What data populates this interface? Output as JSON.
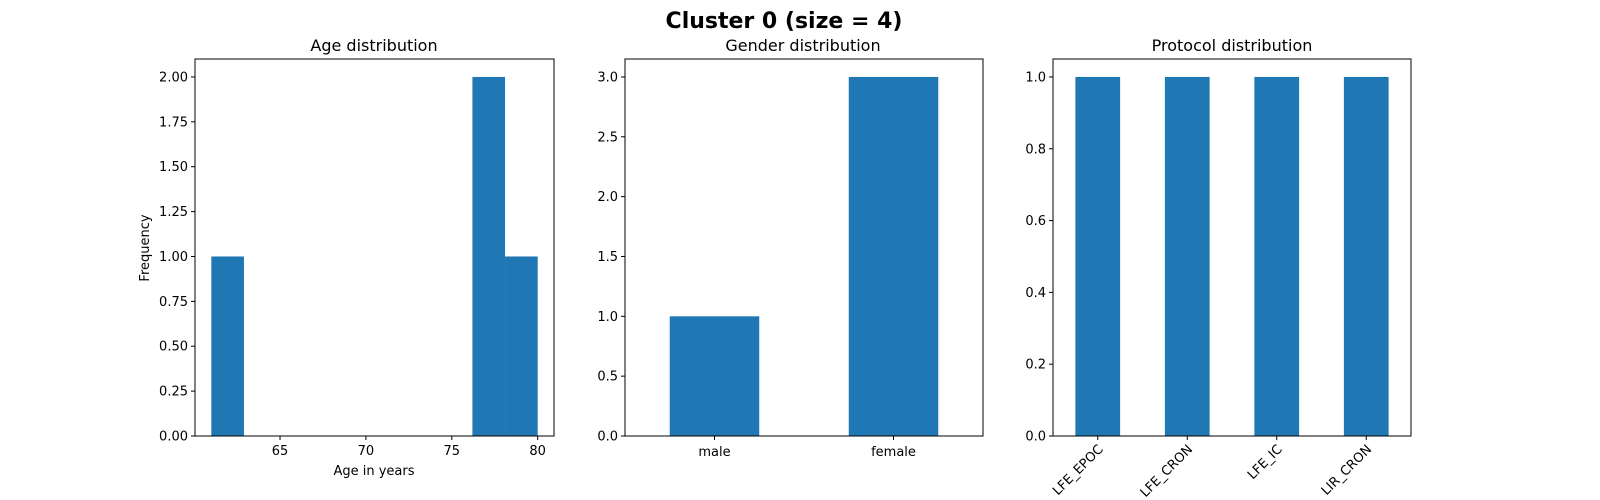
{
  "figure": {
    "suptitle": "Cluster 0 (size = 4)"
  },
  "colors": {
    "bar": "#1f77b4"
  },
  "chart_data": [
    {
      "type": "bar",
      "subtype": "histogram",
      "title": "Age distribution",
      "xlabel": "Age in years",
      "ylabel": "Frequency",
      "xlim": [
        60.05,
        80.95
      ],
      "ylim": [
        0,
        2.1
      ],
      "xticks": [
        65,
        70,
        75,
        80
      ],
      "yticks": [
        0.0,
        0.25,
        0.5,
        0.75,
        1.0,
        1.25,
        1.5,
        1.75,
        2.0
      ],
      "bins": [
        {
          "x0": 61.0,
          "x1": 62.9,
          "value": 1
        },
        {
          "x0": 62.9,
          "x1": 64.8,
          "value": 0
        },
        {
          "x0": 64.8,
          "x1": 66.7,
          "value": 0
        },
        {
          "x0": 66.7,
          "x1": 68.6,
          "value": 0
        },
        {
          "x0": 68.6,
          "x1": 70.5,
          "value": 0
        },
        {
          "x0": 70.5,
          "x1": 72.4,
          "value": 0
        },
        {
          "x0": 72.4,
          "x1": 74.3,
          "value": 0
        },
        {
          "x0": 74.3,
          "x1": 76.2,
          "value": 0
        },
        {
          "x0": 76.2,
          "x1": 78.1,
          "value": 2
        },
        {
          "x0": 78.1,
          "x1": 80.0,
          "value": 1
        }
      ],
      "grid": false
    },
    {
      "type": "bar",
      "title": "Gender distribution",
      "xlabel": "",
      "ylabel": "",
      "categories": [
        "male",
        "female"
      ],
      "values": [
        1,
        3
      ],
      "ylim": [
        0,
        3.15
      ],
      "yticks": [
        0.0,
        0.5,
        1.0,
        1.5,
        2.0,
        2.5,
        3.0
      ],
      "bar_width": 0.5,
      "grid": false
    },
    {
      "type": "bar",
      "title": "Protocol distribution",
      "xlabel": "",
      "ylabel": "",
      "categories": [
        "LFE_EPOC",
        "LFE_CRON",
        "LFE_IC",
        "LIR_CRON"
      ],
      "values": [
        1,
        1,
        1,
        1
      ],
      "ylim": [
        0,
        1.05
      ],
      "yticks": [
        0.0,
        0.2,
        0.4,
        0.6,
        0.8,
        1.0
      ],
      "bar_width": 0.5,
      "tick_rotation": 45,
      "grid": false
    }
  ]
}
